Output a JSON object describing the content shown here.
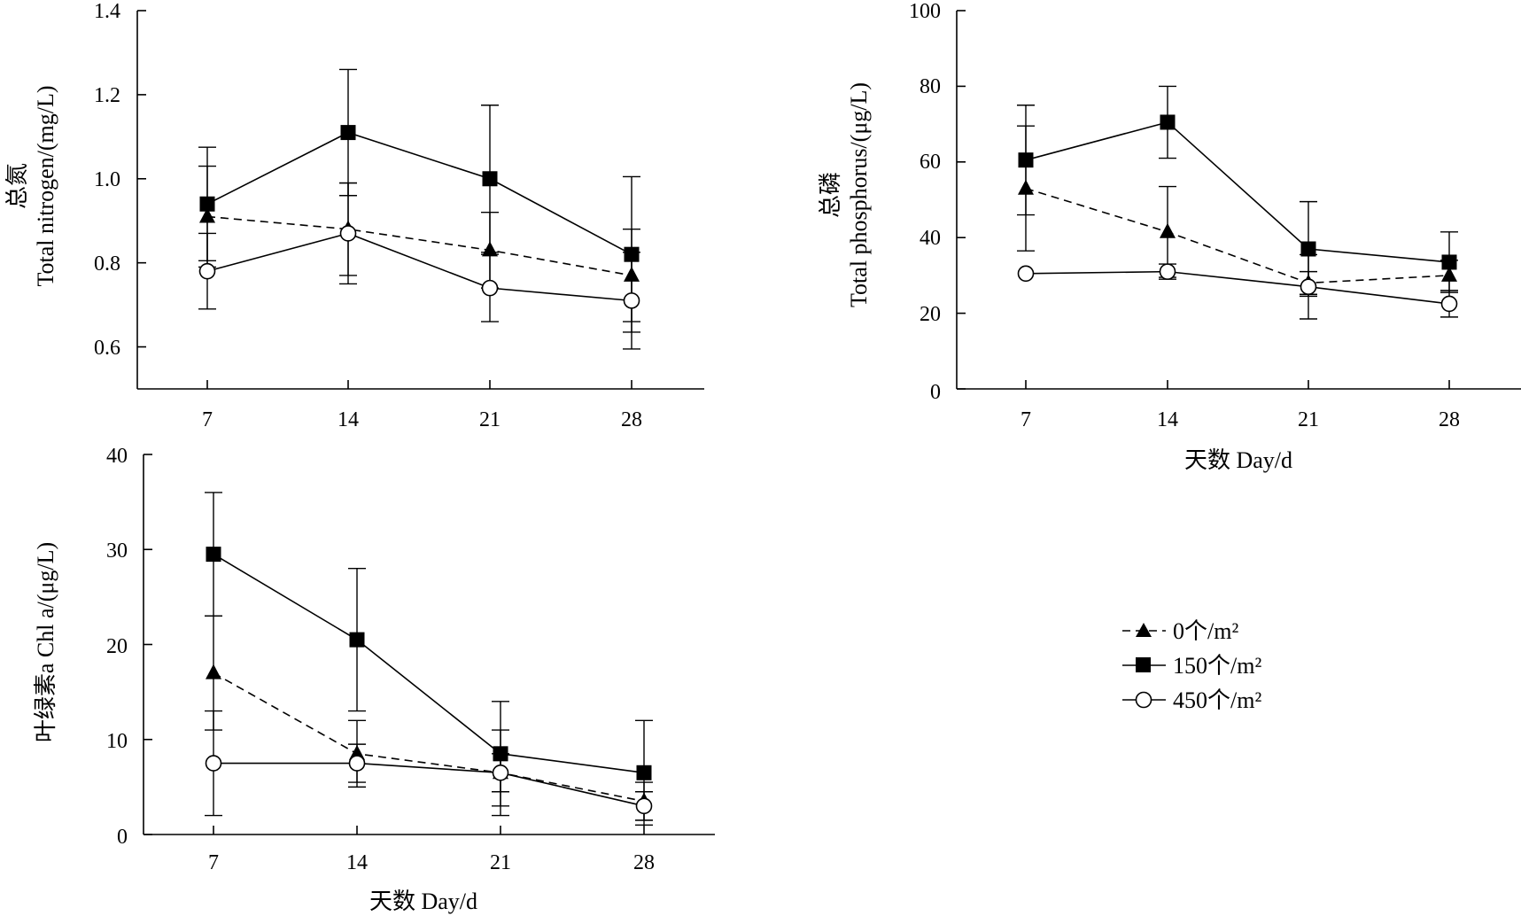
{
  "legend": {
    "position": "lower-right",
    "entries": [
      {
        "series": "s0",
        "label": "0个/m²",
        "line": "dashed",
        "marker": "filled-triangle"
      },
      {
        "series": "s150",
        "label": "150个/m²",
        "line": "solid",
        "marker": "filled-square"
      },
      {
        "series": "s450",
        "label": "450个/m²",
        "line": "solid",
        "marker": "open-circle"
      }
    ]
  },
  "chart_data": [
    {
      "type": "line",
      "ylabel_cn": "总氮",
      "ylabel": "Total nitrogen/(mg/L)",
      "xlabel": "",
      "x": [
        7,
        14,
        21,
        28
      ],
      "xticks": [
        "7",
        "14",
        "21",
        "28"
      ],
      "ylim": [
        0.5,
        1.4
      ],
      "yticks": [
        "0.6",
        "0.8",
        "1.0",
        "1.2",
        "1.4"
      ],
      "series": [
        {
          "key": "s0",
          "name": "0个/m²",
          "values": [
            0.91,
            0.88,
            0.83,
            0.77
          ],
          "errors": [
            0.12,
            0.11,
            0.09,
            0.11
          ]
        },
        {
          "key": "s150",
          "name": "150个/m²",
          "values": [
            0.94,
            1.11,
            1.0,
            0.82
          ],
          "errors": [
            0.135,
            0.15,
            0.175,
            0.185
          ]
        },
        {
          "key": "s450",
          "name": "450个/m²",
          "values": [
            0.78,
            0.87,
            0.74,
            0.71
          ],
          "errors": [
            0.09,
            0.12,
            0.08,
            0.115
          ]
        }
      ]
    },
    {
      "type": "line",
      "ylabel_cn": "总磷",
      "ylabel": "Total phosphorus/(μg/L)",
      "xlabel": "天数 Day/d",
      "x": [
        7,
        14,
        21,
        28
      ],
      "xticks": [
        "7",
        "14",
        "21",
        "28"
      ],
      "ylim": [
        0,
        100
      ],
      "yticks": [
        "0",
        "20",
        "40",
        "60",
        "80",
        "100"
      ],
      "series": [
        {
          "key": "s0",
          "name": "0个/m²",
          "values": [
            53,
            41.5,
            28,
            30
          ],
          "errors": [
            16.5,
            12,
            3,
            4
          ]
        },
        {
          "key": "s150",
          "name": "150个/m²",
          "values": [
            60.5,
            70.5,
            37,
            33.5
          ],
          "errors": [
            14.5,
            9.5,
            12.5,
            8
          ]
        },
        {
          "key": "s450",
          "name": "450个/m²",
          "values": [
            30.5,
            31,
            27,
            22.5
          ],
          "errors": [
            0,
            2,
            8.5,
            3.5
          ]
        }
      ]
    },
    {
      "type": "line",
      "ylabel": "叶绿素a Chl a/(μg/L)",
      "xlabel": "天数 Day/d",
      "x": [
        7,
        14,
        21,
        28
      ],
      "xticks": [
        "7",
        "14",
        "21",
        "28"
      ],
      "ylim": [
        0,
        40
      ],
      "yticks": [
        "0",
        "10",
        "20",
        "30",
        "40"
      ],
      "series": [
        {
          "key": "s0",
          "name": "0个/m²",
          "values": [
            17,
            8.5,
            6.5,
            3.5
          ],
          "errors": [
            6,
            3.5,
            4.5,
            2
          ]
        },
        {
          "key": "s150",
          "name": "150个/m²",
          "values": [
            29.5,
            20.5,
            8.5,
            6.5
          ],
          "errors": [
            6.5,
            7.5,
            5.5,
            5.5
          ]
        },
        {
          "key": "s450",
          "name": "450个/m²",
          "values": [
            7.5,
            7.5,
            6.5,
            3
          ],
          "errors": [
            5.5,
            2,
            2,
            1.5
          ]
        }
      ]
    }
  ]
}
